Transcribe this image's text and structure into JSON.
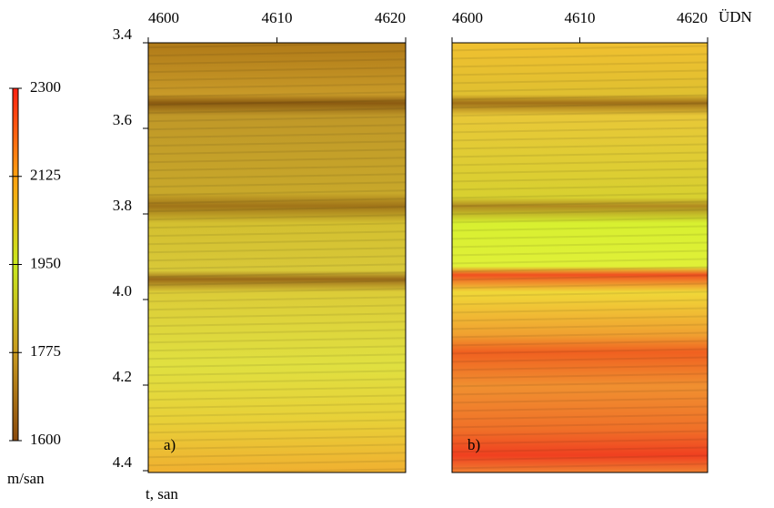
{
  "chart_data": [
    {
      "type": "image",
      "panel_label": "a)",
      "xlim": [
        4600,
        4620
      ],
      "xticks": [
        4600,
        4610,
        4620
      ],
      "ylim": [
        3.4,
        4.4
      ],
      "yticks": [
        3.4,
        3.6,
        3.8,
        {
          "value": 4,
          "label": "4.0"
        },
        4.2,
        4.4
      ],
      "y_label": "t, san"
    },
    {
      "type": "image",
      "panel_label": "b)",
      "xlim": [
        4600,
        4620
      ],
      "xticks": [
        4600,
        4610,
        4620
      ],
      "x_label": "ÜDN"
    }
  ],
  "colorbar": {
    "lim": [
      1600,
      2300
    ],
    "ticks": [
      1600,
      1775,
      1950,
      2125,
      2300
    ],
    "label": "m/san",
    "colors": [
      "#8a4a0c",
      "#c89a20",
      "#c8e81e",
      "#ffa010",
      "#ff2010"
    ]
  }
}
